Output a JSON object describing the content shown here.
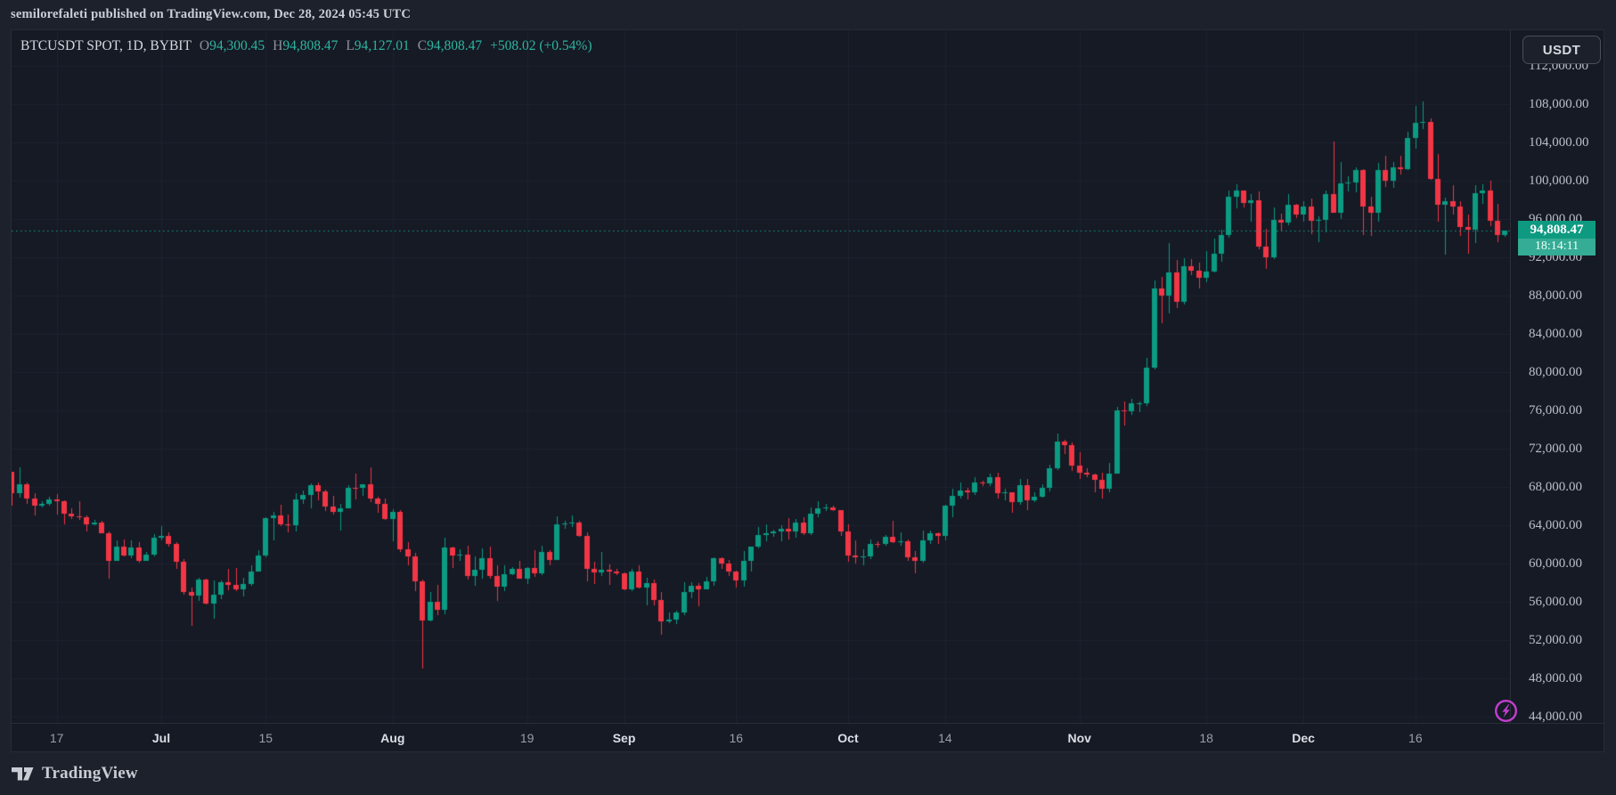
{
  "header": {
    "publish_line": "semilorefaleti published on TradingView.com, Dec 28, 2024 05:45 UTC"
  },
  "toolbar": {
    "currency_label": "USDT"
  },
  "legend": {
    "symbol": "BTCUSDT SPOT, 1D, BYBIT",
    "o_key": "O",
    "o": "94,300.45",
    "h_key": "H",
    "h": "94,808.47",
    "l_key": "L",
    "l": "94,127.01",
    "c_key": "C",
    "c": "94,808.47",
    "change": "+508.02 (+0.54%)"
  },
  "last_price": {
    "price": "94,808.47",
    "countdown": "18:14:11"
  },
  "footer": {
    "brand": "TradingView"
  },
  "chart_data": {
    "type": "candlestick",
    "title": "BTCUSDT SPOT, 1D, BYBIT",
    "symbol": "BTCUSDT",
    "market": "SPOT",
    "interval": "1D",
    "exchange": "BYBIT",
    "current_price": 94808.47,
    "countdown": "18:14:11",
    "start_date": "2024-06-11",
    "end_date": "2024-12-28",
    "price_top": 115695,
    "price_bottom": 43354,
    "x_offset": 0.4,
    "spacing": 8.38,
    "body_w": 6,
    "grid": true,
    "legend_position": "top-left",
    "price_ticks": [
      112000,
      108000,
      104000,
      100000,
      96000,
      92000,
      88000,
      84000,
      80000,
      76000,
      72000,
      68000,
      64000,
      60000,
      56000,
      52000,
      48000,
      44000
    ],
    "time_ticks": [
      {
        "label": "17",
        "i": 6,
        "m": false
      },
      {
        "label": "Jul",
        "i": 20,
        "m": true
      },
      {
        "label": "15",
        "i": 34,
        "m": false
      },
      {
        "label": "Aug",
        "i": 51,
        "m": true
      },
      {
        "label": "19",
        "i": 69,
        "m": false
      },
      {
        "label": "Sep",
        "i": 82,
        "m": true
      },
      {
        "label": "16",
        "i": 97,
        "m": false
      },
      {
        "label": "Oct",
        "i": 112,
        "m": true
      },
      {
        "label": "14",
        "i": 125,
        "m": false
      },
      {
        "label": "Nov",
        "i": 143,
        "m": true
      },
      {
        "label": "18",
        "i": 160,
        "m": false
      },
      {
        "label": "Dec",
        "i": 173,
        "m": true
      },
      {
        "label": "16",
        "i": 188,
        "m": false
      }
    ],
    "colors": {
      "up": "#0b9b82",
      "down": "#f23645",
      "grid": "#1e2330",
      "price_line": "#13a189",
      "label_bg": "#0e9a81"
    },
    "candles": [
      [
        69540,
        69590,
        66050,
        67310
      ],
      [
        67310,
        70000,
        66910,
        68260
      ],
      [
        68260,
        68440,
        66250,
        66770
      ],
      [
        66770,
        67350,
        65050,
        66010
      ],
      [
        66010,
        66480,
        65850,
        66220
      ],
      [
        66220,
        66990,
        66020,
        66670
      ],
      [
        66670,
        67290,
        65130,
        66500
      ],
      [
        66500,
        66580,
        64060,
        65170
      ],
      [
        65170,
        65720,
        64660,
        64960
      ],
      [
        64960,
        66480,
        64550,
        64830
      ],
      [
        64830,
        65020,
        63370,
        64120
      ],
      [
        64120,
        64550,
        63950,
        64260
      ],
      [
        64260,
        64490,
        63150,
        63180
      ],
      [
        63180,
        63370,
        58400,
        60270
      ],
      [
        60270,
        62400,
        60240,
        61790
      ],
      [
        61790,
        62490,
        60760,
        60850
      ],
      [
        60850,
        62410,
        60600,
        61680
      ],
      [
        61680,
        62230,
        60050,
        60320
      ],
      [
        60320,
        61210,
        60270,
        60970
      ],
      [
        60970,
        63060,
        60710,
        62680
      ],
      [
        62680,
        63860,
        62430,
        62890
      ],
      [
        62890,
        63290,
        61770,
        62030
      ],
      [
        62030,
        62230,
        59410,
        60170
      ],
      [
        60170,
        60470,
        56770,
        57040
      ],
      [
        57040,
        57500,
        53500,
        56660
      ],
      [
        56660,
        58470,
        56050,
        58300
      ],
      [
        58300,
        58450,
        55720,
        55850
      ],
      [
        55850,
        58240,
        54260,
        56700
      ],
      [
        56700,
        58250,
        56290,
        58010
      ],
      [
        58010,
        59450,
        57180,
        57740
      ],
      [
        57740,
        59530,
        57110,
        57340
      ],
      [
        57340,
        58530,
        56570,
        57900
      ],
      [
        57900,
        59850,
        57710,
        59200
      ],
      [
        59200,
        61400,
        59190,
        60800
      ],
      [
        60800,
        64870,
        60670,
        64730
      ],
      [
        64730,
        65380,
        62420,
        65050
      ],
      [
        65050,
        66130,
        63890,
        64120
      ],
      [
        64120,
        65100,
        63240,
        63970
      ],
      [
        63970,
        67390,
        63330,
        66660
      ],
      [
        66660,
        67610,
        66220,
        67160
      ],
      [
        67160,
        68370,
        65770,
        68160
      ],
      [
        68160,
        68480,
        66560,
        67530
      ],
      [
        67530,
        67750,
        65440,
        65930
      ],
      [
        65930,
        67080,
        65110,
        65370
      ],
      [
        65370,
        66200,
        63460,
        65780
      ],
      [
        65780,
        68200,
        65730,
        67910
      ],
      [
        67910,
        69400,
        66650,
        67900
      ],
      [
        67900,
        68320,
        67040,
        68260
      ],
      [
        68260,
        70000,
        66430,
        66780
      ],
      [
        66780,
        67000,
        65300,
        66200
      ],
      [
        66200,
        66830,
        64530,
        64630
      ],
      [
        64630,
        65660,
        62300,
        65350
      ],
      [
        65350,
        65580,
        61230,
        61500
      ],
      [
        61500,
        62200,
        59850,
        60700
      ],
      [
        60700,
        61100,
        57120,
        58160
      ],
      [
        58160,
        58320,
        49000,
        54020
      ],
      [
        54020,
        57050,
        53950,
        56030
      ],
      [
        56030,
        57740,
        54560,
        55130
      ],
      [
        55130,
        62720,
        54730,
        61710
      ],
      [
        61710,
        61770,
        59540,
        60880
      ],
      [
        60880,
        61450,
        60240,
        60940
      ],
      [
        60940,
        61850,
        58320,
        58710
      ],
      [
        58710,
        60700,
        57640,
        59350
      ],
      [
        59350,
        61550,
        58440,
        60600
      ],
      [
        60600,
        61790,
        58430,
        58700
      ],
      [
        58700,
        59840,
        56100,
        57560
      ],
      [
        57560,
        59800,
        57100,
        58890
      ],
      [
        58890,
        59670,
        58820,
        59480
      ],
      [
        59480,
        60250,
        58440,
        58460
      ],
      [
        58460,
        59600,
        57830,
        59490
      ],
      [
        59490,
        61400,
        58600,
        59010
      ],
      [
        59010,
        61830,
        58780,
        61170
      ],
      [
        61170,
        61420,
        59770,
        60380
      ],
      [
        60380,
        64950,
        60370,
        64090
      ],
      [
        64090,
        64480,
        63580,
        64170
      ],
      [
        64170,
        65000,
        63830,
        64270
      ],
      [
        64270,
        64500,
        62830,
        62880
      ],
      [
        62880,
        63210,
        58110,
        59420
      ],
      [
        59420,
        60230,
        57860,
        59040
      ],
      [
        59040,
        61180,
        58740,
        59360
      ],
      [
        59360,
        59910,
        57760,
        59120
      ],
      [
        59120,
        59480,
        58770,
        58970
      ],
      [
        58970,
        59070,
        57200,
        57300
      ],
      [
        57300,
        59430,
        57130,
        59130
      ],
      [
        59130,
        59810,
        57410,
        57490
      ],
      [
        57490,
        58520,
        55620,
        57970
      ],
      [
        57970,
        58330,
        55640,
        56180
      ],
      [
        56180,
        57010,
        52530,
        53950
      ],
      [
        53950,
        54850,
        53740,
        54160
      ],
      [
        54160,
        55100,
        53630,
        54870
      ],
      [
        54870,
        58080,
        54590,
        57040
      ],
      [
        57040,
        58040,
        56390,
        57650
      ],
      [
        57650,
        57980,
        55560,
        57340
      ],
      [
        57340,
        58580,
        57320,
        58130
      ],
      [
        58130,
        60620,
        57630,
        60570
      ],
      [
        60570,
        60660,
        59470,
        60000
      ],
      [
        60000,
        60380,
        58690,
        59180
      ],
      [
        59180,
        59210,
        57490,
        58210
      ],
      [
        58210,
        61320,
        57610,
        60310
      ],
      [
        60310,
        61790,
        59170,
        61760
      ],
      [
        61760,
        63850,
        61560,
        62940
      ],
      [
        62940,
        64130,
        62350,
        63200
      ],
      [
        63200,
        63550,
        62750,
        63350
      ],
      [
        63350,
        64000,
        62360,
        63650
      ],
      [
        63650,
        64740,
        62540,
        63340
      ],
      [
        63340,
        64690,
        62720,
        64270
      ],
      [
        64270,
        64820,
        62950,
        63150
      ],
      [
        63150,
        65830,
        62980,
        65170
      ],
      [
        65170,
        66490,
        64850,
        65790
      ],
      [
        65790,
        66260,
        65450,
        65880
      ],
      [
        65880,
        66070,
        65440,
        65600
      ],
      [
        65600,
        65620,
        62860,
        63330
      ],
      [
        63330,
        64130,
        60160,
        60840
      ],
      [
        60840,
        62370,
        60000,
        60650
      ],
      [
        60650,
        61470,
        59820,
        60760
      ],
      [
        60760,
        62480,
        60460,
        62080
      ],
      [
        62080,
        62360,
        61690,
        62060
      ],
      [
        62060,
        62970,
        61830,
        62820
      ],
      [
        62820,
        64470,
        62130,
        62240
      ],
      [
        62240,
        63210,
        61860,
        62280
      ],
      [
        62280,
        62550,
        60320,
        60630
      ],
      [
        60630,
        61320,
        58950,
        60270
      ],
      [
        60270,
        63410,
        60090,
        62450
      ],
      [
        62450,
        63470,
        62030,
        63190
      ],
      [
        63190,
        63290,
        62050,
        62850
      ],
      [
        62850,
        66110,
        62460,
        66050
      ],
      [
        66050,
        67830,
        64800,
        67040
      ],
      [
        67040,
        68420,
        66750,
        67610
      ],
      [
        67610,
        67940,
        66660,
        67420
      ],
      [
        67420,
        68980,
        67170,
        68420
      ],
      [
        68420,
        68690,
        68060,
        68360
      ],
      [
        68360,
        69400,
        68060,
        69030
      ],
      [
        69030,
        69520,
        66820,
        67370
      ],
      [
        67370,
        67770,
        66560,
        67400
      ],
      [
        67400,
        67470,
        65260,
        66440
      ],
      [
        66440,
        68790,
        66100,
        68160
      ],
      [
        68160,
        68830,
        65590,
        66600
      ],
      [
        66600,
        67440,
        66390,
        67010
      ],
      [
        67010,
        68290,
        66870,
        67930
      ],
      [
        67930,
        70280,
        67570,
        69930
      ],
      [
        69930,
        73620,
        69720,
        72720
      ],
      [
        72720,
        72960,
        71410,
        72330
      ],
      [
        72330,
        72660,
        69690,
        70210
      ],
      [
        70210,
        71630,
        68820,
        69480
      ],
      [
        69480,
        69910,
        69000,
        69290
      ],
      [
        69290,
        69390,
        67480,
        68740
      ],
      [
        68740,
        69470,
        66830,
        67810
      ],
      [
        67810,
        70550,
        67480,
        69370
      ],
      [
        69370,
        76400,
        69370,
        76000
      ],
      [
        76000,
        76880,
        74440,
        75900
      ],
      [
        75900,
        77240,
        75570,
        76700
      ],
      [
        76700,
        76910,
        75770,
        76750
      ],
      [
        76750,
        81470,
        76490,
        80470
      ],
      [
        80470,
        89530,
        80240,
        88700
      ],
      [
        88700,
        89940,
        85110,
        87960
      ],
      [
        87960,
        93470,
        86150,
        90410
      ],
      [
        90410,
        91750,
        86670,
        87290
      ],
      [
        87290,
        91850,
        87090,
        91030
      ],
      [
        91030,
        91770,
        90080,
        90560
      ],
      [
        90560,
        91450,
        88720,
        89830
      ],
      [
        89830,
        92590,
        89380,
        90460
      ],
      [
        90460,
        93900,
        90370,
        92310
      ],
      [
        92310,
        94830,
        91500,
        94270
      ],
      [
        94270,
        98950,
        94040,
        98350
      ],
      [
        98350,
        99640,
        97120,
        98920
      ],
      [
        98920,
        99000,
        97180,
        97700
      ],
      [
        97700,
        98560,
        95750,
        97950
      ],
      [
        97950,
        98870,
        92850,
        93070
      ],
      [
        93070,
        94990,
        90790,
        91970
      ],
      [
        91970,
        97210,
        91790,
        95890
      ],
      [
        95890,
        96540,
        94650,
        95650
      ],
      [
        95650,
        98590,
        95360,
        97460
      ],
      [
        97460,
        97550,
        96110,
        96410
      ],
      [
        96410,
        97830,
        95720,
        97280
      ],
      [
        97280,
        98130,
        94400,
        95840
      ],
      [
        95840,
        96240,
        93580,
        95900
      ],
      [
        95900,
        99000,
        94590,
        98590
      ],
      [
        98590,
        104090,
        98110,
        96590
      ],
      [
        96590,
        101910,
        95990,
        99740
      ],
      [
        99740,
        100440,
        98840,
        99830
      ],
      [
        99830,
        101350,
        98730,
        101110
      ],
      [
        101110,
        101230,
        94320,
        97280
      ],
      [
        97280,
        98270,
        94260,
        96590
      ],
      [
        96590,
        101880,
        95690,
        101130
      ],
      [
        101130,
        102540,
        99310,
        100010
      ],
      [
        100010,
        101890,
        99210,
        101420
      ],
      [
        101420,
        102630,
        100610,
        101220
      ],
      [
        101220,
        105120,
        101070,
        104460
      ],
      [
        104460,
        107790,
        103330,
        106060
      ],
      [
        106060,
        108260,
        105340,
        106140
      ],
      [
        106140,
        106480,
        100050,
        100200
      ],
      [
        100200,
        102800,
        95670,
        97460
      ],
      [
        97460,
        98230,
        92230,
        97810
      ],
      [
        97810,
        99540,
        96410,
        97290
      ],
      [
        97290,
        97810,
        94210,
        95190
      ],
      [
        95190,
        96450,
        92360,
        94890
      ],
      [
        94890,
        99470,
        93430,
        98670
      ],
      [
        98670,
        99590,
        97560,
        99000
      ],
      [
        99000,
        99960,
        95230,
        95780
      ],
      [
        95780,
        97540,
        93540,
        94300
      ],
      [
        94300,
        94810,
        94130,
        94808
      ]
    ]
  }
}
